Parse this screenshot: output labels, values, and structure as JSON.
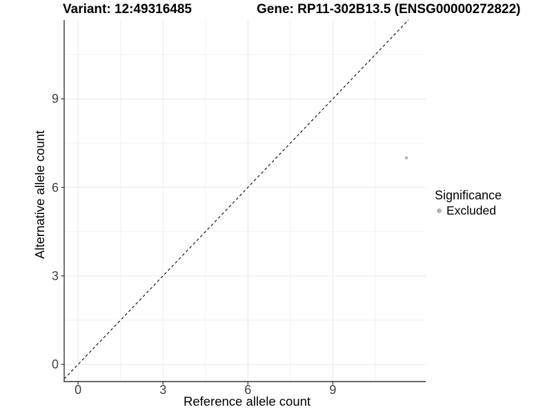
{
  "chart_data": {
    "type": "scatter",
    "title_left": "Variant: 12:49316485",
    "title_right": "Gene: RP11-302B13.5 (ENSG00000272822)",
    "xlabel": "Reference allele count",
    "ylabel": "Alternative allele count",
    "x_ticks": [
      0,
      3,
      6,
      9
    ],
    "y_ticks": [
      0,
      3,
      6,
      9
    ],
    "x_minor_ticks": [
      1.5,
      4.5,
      7.5,
      10.5
    ],
    "y_minor_ticks": [
      1.5,
      4.5,
      7.5,
      10.5
    ],
    "xlim": [
      -0.49,
      12.28
    ],
    "ylim": [
      -0.58,
      11.67
    ],
    "grid": true,
    "reference_line": {
      "style": "dashed",
      "slope": 1,
      "intercept": 0,
      "color": "#000000"
    },
    "series": [
      {
        "name": "Excluded",
        "color": "#b3b3b3",
        "points": [
          {
            "x": 11.6,
            "y": 7
          }
        ],
        "point_radius": 2.3
      }
    ],
    "legend": {
      "title": "Significance",
      "position": "right",
      "entries": [
        {
          "label": "Excluded",
          "color": "#b3b3b3"
        }
      ]
    }
  },
  "colors": {
    "background": "#ffffff",
    "axis_line": "#333333",
    "tick_text": "#404040",
    "grid_major": "#e9e9e9",
    "grid_minor": "#f2f2f2",
    "point": "#b3b3b3",
    "reference_line": "#000000"
  }
}
